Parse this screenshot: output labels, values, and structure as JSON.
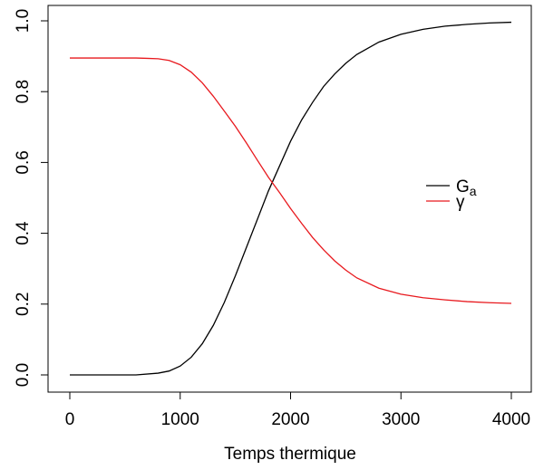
{
  "chart_data": {
    "type": "line",
    "xlabel": "Temps thermique",
    "ylabel": "",
    "xlim": [
      0,
      4000
    ],
    "ylim": [
      0,
      1
    ],
    "xticks": [
      0,
      1000,
      2000,
      3000,
      4000
    ],
    "yticks": [
      0.0,
      0.2,
      0.4,
      0.6,
      0.8,
      1.0
    ],
    "xtick_labels": [
      "0",
      "1000",
      "2000",
      "3000",
      "4000"
    ],
    "ytick_labels": [
      "0.0",
      "0.2",
      "0.4",
      "0.6",
      "0.8",
      "1.0"
    ],
    "grid": false,
    "legend": {
      "placement": "right-middle",
      "entries": [
        {
          "label_main": "G",
          "label_sub": "a",
          "color": "#000000"
        },
        {
          "label_main": "γ",
          "label_sub": "",
          "color": "#e8191e"
        }
      ]
    },
    "series": [
      {
        "name": "Ga",
        "color": "#000000",
        "x": [
          0,
          200,
          400,
          600,
          800,
          900,
          1000,
          1100,
          1200,
          1300,
          1400,
          1500,
          1600,
          1700,
          1800,
          1900,
          2000,
          2100,
          2200,
          2300,
          2400,
          2500,
          2600,
          2800,
          3000,
          3200,
          3400,
          3600,
          3800,
          4000
        ],
        "y": [
          0.0,
          0.0,
          0.0,
          0.0,
          0.005,
          0.011,
          0.025,
          0.05,
          0.088,
          0.14,
          0.205,
          0.28,
          0.36,
          0.44,
          0.52,
          0.59,
          0.66,
          0.72,
          0.77,
          0.815,
          0.85,
          0.88,
          0.905,
          0.94,
          0.962,
          0.976,
          0.985,
          0.99,
          0.994,
          0.996
        ]
      },
      {
        "name": "γ",
        "color": "#e8191e",
        "x": [
          0,
          200,
          400,
          600,
          700,
          800,
          900,
          1000,
          1100,
          1200,
          1300,
          1400,
          1500,
          1600,
          1700,
          1800,
          1900,
          2000,
          2100,
          2200,
          2300,
          2400,
          2500,
          2600,
          2800,
          3000,
          3200,
          3400,
          3600,
          3800,
          4000
        ],
        "y": [
          0.895,
          0.895,
          0.895,
          0.895,
          0.894,
          0.893,
          0.888,
          0.876,
          0.855,
          0.825,
          0.787,
          0.745,
          0.702,
          0.655,
          0.606,
          0.558,
          0.515,
          0.47,
          0.428,
          0.388,
          0.353,
          0.322,
          0.296,
          0.274,
          0.245,
          0.228,
          0.218,
          0.212,
          0.207,
          0.204,
          0.202
        ]
      }
    ]
  }
}
